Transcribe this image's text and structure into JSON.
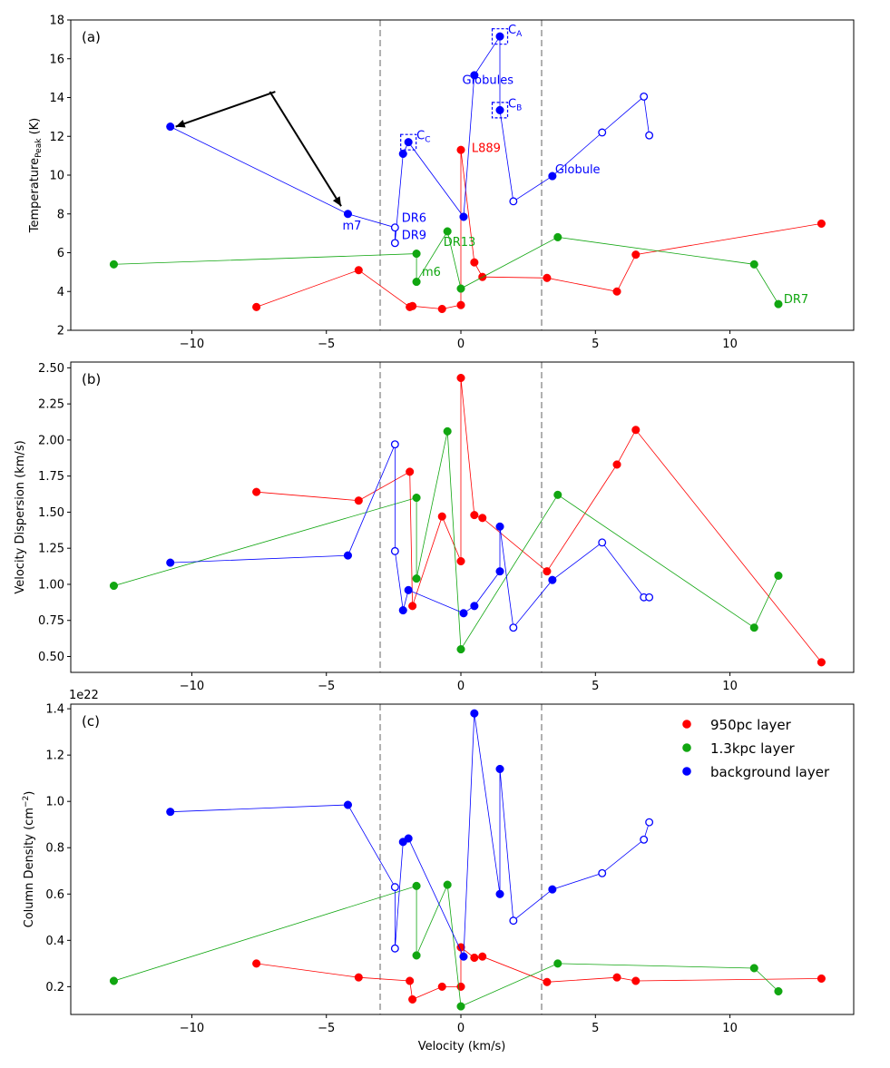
{
  "colors": {
    "red": "#ff0000",
    "green": "#11a611",
    "blue": "#0000ff",
    "dash": "#b0b0b0",
    "arrow": "#000000"
  },
  "shared_x": {
    "label": "Velocity (km/s)",
    "lim": [
      -14.5,
      14.6
    ],
    "ticks": [
      -10,
      -5,
      0,
      5,
      10
    ],
    "tick_labels": [
      "−10",
      "−5",
      "0",
      "5",
      "10"
    ]
  },
  "vlines": [
    -3,
    3
  ],
  "legend": {
    "position": "top-right",
    "entries": [
      {
        "label": "950pc layer",
        "color": "#ff0000"
      },
      {
        "label": "1.3kpc layer",
        "color": "#11a611"
      },
      {
        "label": "background layer",
        "color": "#0000ff"
      }
    ]
  },
  "chart_data": [
    {
      "type": "line",
      "panel_label": "(a)",
      "xlabel": "Velocity (km/s)",
      "ylabel_main": "Temperature",
      "ylabel_sub": "Peak",
      "ylabel_unit": "(K)",
      "ylim": [
        2,
        18
      ],
      "yticks": [
        2,
        4,
        6,
        8,
        10,
        12,
        14,
        16,
        18
      ],
      "ytick_labels": [
        "2",
        "4",
        "6",
        "8",
        "10",
        "12",
        "14",
        "16",
        "18"
      ],
      "series": [
        {
          "color": "red",
          "x": [
            -7.6,
            -3.8,
            -1.9,
            -1.8,
            -0.7,
            0,
            0,
            0.5,
            0.8,
            3.2,
            5.8,
            6.5,
            13.4
          ],
          "y": [
            3.2,
            5.1,
            3.2,
            3.25,
            3.1,
            3.3,
            11.3,
            5.5,
            4.75,
            4.7,
            4,
            5.9,
            7.5
          ],
          "open": [
            false,
            false,
            false,
            false,
            false,
            false,
            false,
            false,
            false,
            false,
            false,
            false,
            false
          ]
        },
        {
          "color": "green",
          "x": [
            -12.9,
            -1.65,
            -1.65,
            -0.5,
            0,
            3.6,
            10.9,
            11.8
          ],
          "y": [
            5.4,
            5.95,
            4.5,
            7.1,
            4.15,
            6.8,
            5.4,
            3.35
          ],
          "open": [
            false,
            false,
            false,
            false,
            false,
            false,
            false,
            false
          ]
        },
        {
          "color": "blue",
          "x": [
            -10.8,
            -4.2,
            -2.45,
            -2.45,
            -2.15,
            -1.95,
            0.1,
            0.5,
            1.45,
            1.45,
            1.95,
            3.4,
            5.25,
            6.8,
            7
          ],
          "y": [
            12.5,
            8,
            7.3,
            6.5,
            11.1,
            11.7,
            7.85,
            15.15,
            17.15,
            13.35,
            8.65,
            9.95,
            12.2,
            14.05,
            12.05
          ],
          "open": [
            false,
            false,
            true,
            true,
            false,
            false,
            false,
            false,
            false,
            false,
            true,
            false,
            true,
            true,
            true
          ]
        }
      ],
      "annotations": [
        {
          "text": "Globules",
          "color": "blue",
          "x": 0.05,
          "y": 14.7
        },
        {
          "text": "L889",
          "color": "red",
          "x": 0.4,
          "y": 11.2
        },
        {
          "text": "Globule",
          "color": "blue",
          "x": 3.5,
          "y": 10.1
        },
        {
          "text": "DR6",
          "color": "blue",
          "x": -2.2,
          "y": 7.6
        },
        {
          "text": "DR9",
          "color": "blue",
          "x": -2.2,
          "y": 6.7
        },
        {
          "text": "m7",
          "color": "blue",
          "x": -4.4,
          "y": 7.2
        },
        {
          "text": "DR13",
          "color": "green",
          "x": -0.65,
          "y": 6.35
        },
        {
          "text": "m6",
          "color": "green",
          "x": -1.45,
          "y": 4.8
        },
        {
          "text": "DR7",
          "color": "green",
          "x": 12,
          "y": 3.4
        }
      ],
      "core_labels": [
        {
          "main": "C",
          "sub": "A",
          "x": 1.45,
          "y": 17.15
        },
        {
          "main": "C",
          "sub": "B",
          "x": 1.45,
          "y": 13.35
        },
        {
          "main": "C",
          "sub": "C",
          "x": -1.95,
          "y": 11.7
        }
      ],
      "arrows": [
        {
          "from": [
            -6.9,
            14.3
          ],
          "to": [
            -10.6,
            12.5
          ]
        },
        {
          "from": [
            -7.1,
            14.3
          ],
          "to": [
            -4.45,
            8.4
          ]
        }
      ]
    },
    {
      "type": "line",
      "panel_label": "(b)",
      "xlabel": "Velocity (km/s)",
      "ylabel": "Velocity Dispersion (km/s)",
      "ylim": [
        0.39,
        2.54
      ],
      "yticks": [
        0.5,
        0.75,
        1.0,
        1.25,
        1.5,
        1.75,
        2.0,
        2.25,
        2.5
      ],
      "ytick_labels": [
        "0.50",
        "0.75",
        "1.00",
        "1.25",
        "1.50",
        "1.75",
        "2.00",
        "2.25",
        "2.50"
      ],
      "series": [
        {
          "color": "red",
          "x": [
            -7.6,
            -3.8,
            -1.9,
            -1.8,
            -0.7,
            0,
            0,
            0.5,
            0.8,
            3.2,
            5.8,
            6.5,
            13.4
          ],
          "y": [
            1.64,
            1.58,
            1.78,
            0.85,
            1.47,
            1.16,
            2.43,
            1.48,
            1.46,
            1.09,
            1.83,
            2.07,
            0.46
          ],
          "open": [
            false,
            false,
            false,
            false,
            false,
            false,
            false,
            false,
            false,
            false,
            false,
            false,
            false
          ]
        },
        {
          "color": "green",
          "x": [
            -12.9,
            -1.65,
            -1.65,
            -0.5,
            0,
            3.6,
            10.9,
            11.8
          ],
          "y": [
            0.99,
            1.6,
            1.04,
            2.06,
            0.55,
            1.62,
            0.7,
            1.06
          ],
          "open": [
            false,
            false,
            false,
            false,
            false,
            false,
            false,
            false
          ]
        },
        {
          "color": "blue",
          "x": [
            -10.8,
            -4.2,
            -2.45,
            -2.45,
            -2.15,
            -1.95,
            0.1,
            0.5,
            1.45,
            1.45,
            1.95,
            3.4,
            5.25,
            6.8,
            7
          ],
          "y": [
            1.15,
            1.2,
            1.97,
            1.23,
            0.82,
            0.96,
            0.8,
            0.85,
            1.09,
            1.4,
            0.7,
            1.03,
            1.29,
            0.91,
            0.91
          ],
          "open": [
            false,
            false,
            true,
            true,
            false,
            false,
            false,
            false,
            false,
            false,
            true,
            false,
            true,
            true,
            true
          ]
        }
      ]
    },
    {
      "type": "line",
      "panel_label": "(c)",
      "xlabel": "Velocity (km/s)",
      "ylabel_main": "Column Density",
      "ylabel_unit": "(cm",
      "ylabel_sup": "−2",
      "ylabel_close": ")",
      "offset_text": "1e22",
      "ylim": [
        0.08,
        1.42
      ],
      "yticks": [
        0.2,
        0.4,
        0.6,
        0.8,
        1.0,
        1.2,
        1.4
      ],
      "ytick_labels": [
        "0.2",
        "0.4",
        "0.6",
        "0.8",
        "1.0",
        "1.2",
        "1.4"
      ],
      "series": [
        {
          "color": "red",
          "x": [
            -7.6,
            -3.8,
            -1.9,
            -1.8,
            -0.7,
            0,
            0,
            0.5,
            0.8,
            3.2,
            5.8,
            6.5,
            13.4
          ],
          "y": [
            0.3,
            0.24,
            0.225,
            0.145,
            0.2,
            0.2,
            0.37,
            0.325,
            0.33,
            0.22,
            0.24,
            0.225,
            0.235
          ],
          "open": [
            false,
            false,
            false,
            false,
            false,
            false,
            false,
            false,
            false,
            false,
            false,
            false,
            false
          ]
        },
        {
          "color": "green",
          "x": [
            -12.9,
            -1.65,
            -1.65,
            -0.5,
            0,
            3.6,
            10.9,
            11.8
          ],
          "y": [
            0.225,
            0.635,
            0.335,
            0.64,
            0.115,
            0.3,
            0.28,
            0.18
          ],
          "open": [
            false,
            false,
            false,
            false,
            false,
            false,
            false,
            false
          ]
        },
        {
          "color": "blue",
          "x": [
            -10.8,
            -4.2,
            -2.45,
            -2.45,
            -2.15,
            -1.95,
            0.1,
            0.5,
            1.45,
            1.45,
            1.95,
            3.4,
            5.25,
            6.8,
            7
          ],
          "y": [
            0.955,
            0.985,
            0.63,
            0.365,
            0.825,
            0.84,
            0.33,
            1.38,
            0.6,
            1.14,
            0.485,
            0.62,
            0.69,
            0.835,
            0.91
          ],
          "open": [
            false,
            false,
            true,
            true,
            false,
            false,
            false,
            false,
            false,
            false,
            true,
            false,
            true,
            true,
            true
          ]
        }
      ]
    }
  ]
}
